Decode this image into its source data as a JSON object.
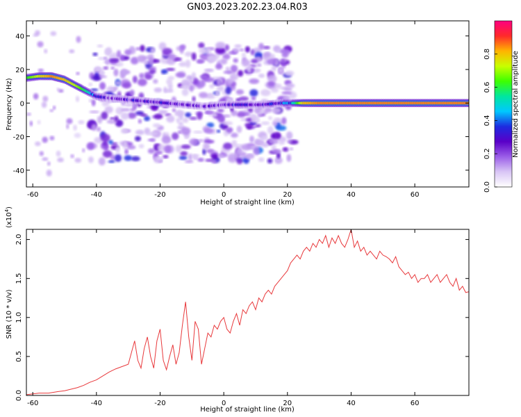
{
  "figure_title": "GN03.2023.202.23.04.R03",
  "chart_data": [
    {
      "type": "heatmap",
      "title": "",
      "xlabel": "Height of straight line (km)",
      "ylabel": "Frequency (Hz)",
      "xlim": [
        -62,
        77
      ],
      "ylim": [
        -50,
        49
      ],
      "xticks": [
        -60,
        -40,
        -20,
        0,
        20,
        40,
        60
      ],
      "yticks": [
        -40,
        -20,
        0,
        20,
        40
      ],
      "colorbar": {
        "label": "Normalized spectral amplitude",
        "range": [
          0,
          1
        ],
        "ticks": [
          0.0,
          0.2,
          0.4,
          0.6,
          0.8
        ],
        "tick_labels": [
          "0.0",
          "0.2",
          "0.4",
          "0.6",
          "0.8"
        ],
        "colormap": [
          "#ffffff",
          "#d9c6f5",
          "#9b5ee8",
          "#5a00c8",
          "#1d2be0",
          "#00c8ff",
          "#00e6a0",
          "#3dff00",
          "#c8ff00",
          "#ffb400",
          "#ff2a2a",
          "#ff0080"
        ]
      },
      "ridge": {
        "x": [
          -62,
          -58,
          -54,
          -50,
          -46,
          -42,
          -40,
          -36,
          -30,
          -24,
          -18,
          -12,
          -6,
          0,
          6,
          12,
          18,
          22,
          25,
          30,
          40,
          50,
          60,
          70,
          77
        ],
        "frequency": [
          15,
          16,
          16,
          14,
          10,
          6,
          4,
          3,
          2,
          1,
          0,
          -1,
          -2,
          -1,
          -1,
          -1,
          0,
          0,
          0,
          0,
          0,
          0,
          0,
          0,
          0
        ],
        "amplitude": [
          0.6,
          0.75,
          0.85,
          0.8,
          0.7,
          0.5,
          0.3,
          0.2,
          0.25,
          0.25,
          0.25,
          0.2,
          0.2,
          0.25,
          0.25,
          0.25,
          0.3,
          0.5,
          0.8,
          0.85,
          0.85,
          0.85,
          0.85,
          0.85,
          0.85
        ]
      },
      "noise_region": [
        -42,
        22
      ]
    },
    {
      "type": "line",
      "title": "",
      "xlabel": "Height of straight line (km)",
      "ylabel": "SNR (10 * v/v)",
      "y_scale_label": "(x10",
      "y_scale_exponent": "4",
      "y_scale_suffix": ")",
      "xlim": [
        -62,
        77
      ],
      "ylim": [
        0,
        2.13
      ],
      "xticks": [
        -60,
        -40,
        -20,
        0,
        20,
        40,
        60
      ],
      "yticks": [
        0.0,
        0.5,
        1.0,
        1.5,
        2.0
      ],
      "ytick_labels": [
        "0.0",
        "0.5",
        "1.0",
        "1.5",
        "2.0"
      ],
      "color": "#e8373a",
      "series": [
        {
          "x": [
            -62,
            -58,
            -55,
            -52,
            -50,
            -48,
            -46,
            -44,
            -42,
            -40,
            -38,
            -36,
            -34,
            -32,
            -30,
            -29,
            -28,
            -27,
            -26,
            -25,
            -24,
            -23,
            -22,
            -21,
            -20,
            -19,
            -18,
            -17,
            -16,
            -15,
            -14,
            -13,
            -12,
            -11,
            -10,
            -9,
            -8,
            -7,
            -6,
            -5,
            -4,
            -3,
            -2,
            -1,
            0,
            1,
            2,
            3,
            4,
            5,
            6,
            7,
            8,
            9,
            10,
            11,
            12,
            13,
            14,
            15,
            16,
            17,
            18,
            19,
            20,
            21,
            22,
            23,
            24,
            25,
            26,
            27,
            28,
            29,
            30,
            31,
            32,
            33,
            34,
            35,
            36,
            37,
            38,
            39,
            40,
            41,
            42,
            43,
            44,
            45,
            46,
            47,
            48,
            49,
            50,
            51,
            52,
            53,
            54,
            55,
            56,
            57,
            58,
            59,
            60,
            61,
            62,
            63,
            64,
            65,
            66,
            67,
            68,
            69,
            70,
            71,
            72,
            73,
            74,
            75,
            76,
            77
          ],
          "y": [
            0.01,
            0.03,
            0.03,
            0.05,
            0.06,
            0.08,
            0.1,
            0.13,
            0.17,
            0.2,
            0.25,
            0.3,
            0.34,
            0.37,
            0.4,
            0.55,
            0.7,
            0.45,
            0.35,
            0.6,
            0.75,
            0.5,
            0.35,
            0.7,
            0.85,
            0.45,
            0.33,
            0.5,
            0.65,
            0.4,
            0.55,
            0.9,
            1.2,
            0.75,
            0.45,
            0.95,
            0.85,
            0.4,
            0.6,
            0.8,
            0.75,
            0.9,
            0.85,
            0.95,
            1.0,
            0.85,
            0.8,
            0.95,
            1.05,
            0.9,
            1.1,
            1.05,
            1.15,
            1.2,
            1.1,
            1.25,
            1.2,
            1.3,
            1.35,
            1.3,
            1.4,
            1.45,
            1.5,
            1.55,
            1.6,
            1.7,
            1.75,
            1.8,
            1.75,
            1.85,
            1.9,
            1.85,
            1.95,
            1.9,
            2.0,
            1.95,
            2.05,
            1.9,
            2.02,
            1.95,
            2.05,
            1.95,
            1.9,
            2.0,
            2.13,
            1.9,
            1.98,
            1.85,
            1.9,
            1.8,
            1.85,
            1.8,
            1.75,
            1.85,
            1.8,
            1.78,
            1.75,
            1.7,
            1.78,
            1.65,
            1.6,
            1.55,
            1.58,
            1.5,
            1.55,
            1.45,
            1.5,
            1.5,
            1.55,
            1.45,
            1.5,
            1.55,
            1.45,
            1.5,
            1.55,
            1.45,
            1.4,
            1.5,
            1.35,
            1.4,
            1.32,
            1.33
          ]
        }
      ]
    }
  ]
}
